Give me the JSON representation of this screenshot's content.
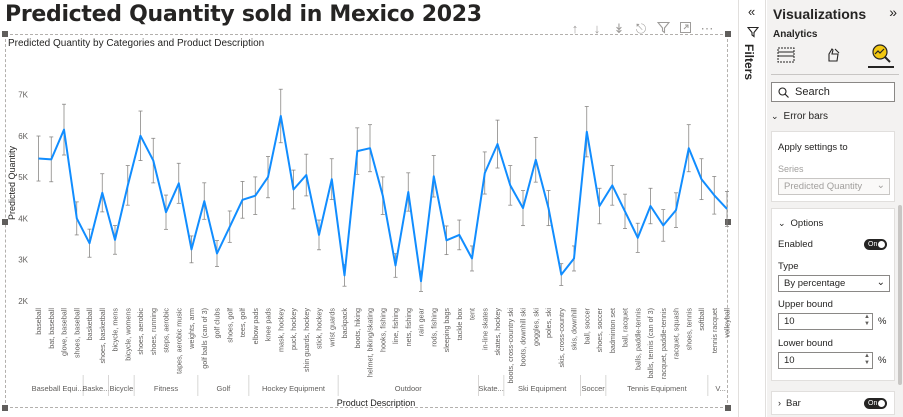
{
  "report": {
    "title": "Predicted Quantity sold in Mexico 2023"
  },
  "visual": {
    "title": "Predicted Quantity by Categories and Product Description",
    "header_icons": [
      "arrow-up-icon",
      "arrow-down-icon",
      "double-arrow-down-icon",
      "expand-hierarchy-icon",
      "filter-icon",
      "focus-mode-icon",
      "more-options-icon"
    ]
  },
  "chart_data": {
    "type": "line",
    "xlabel": "Product Description",
    "ylabel": "Predicted Quantity",
    "ylim": [
      2000,
      7400
    ],
    "yticks": [
      2000,
      3000,
      4000,
      5000,
      6000,
      7000
    ],
    "ytick_labels": [
      "2K",
      "3K",
      "4K",
      "5K",
      "6K",
      "7K"
    ],
    "error_bars": "percentage ±10%",
    "color": "#118DFF",
    "categories": [
      "baseball",
      "bat, baseball",
      "glove, baseball",
      "shoes, baseball",
      "basketball",
      "shoes, basketball",
      "bicycle, mens",
      "bicycle, womens",
      "shoes, aerobic",
      "shoes, running",
      "steps, aerobic",
      "tapes, aerobic music",
      "weights, arm",
      "golf balls (can of 3)",
      "golf clubs",
      "shoes, golf",
      "tees, golf",
      "elbow pads",
      "knee pads",
      "mask, hockey",
      "puck, hockey",
      "shin guards, hockey",
      "stick, hockey",
      "wrist guards",
      "backpack",
      "boots, hiking",
      "helmet, biking/skating",
      "hooks, fishing",
      "line, fishing",
      "nets, fishing",
      "rain gear",
      "rods, fishing",
      "sleeping bags",
      "tackle box",
      "tent",
      "in-line skates",
      "skates, hockey",
      "boots, cross-country ski",
      "boots, downhill ski",
      "goggles, ski",
      "poles, ski",
      "skis, cross-country",
      "skis, downhill",
      "ball, soccer",
      "shoes, soccer",
      "badminton set",
      "ball, racquet",
      "balls, paddle-tennis",
      "balls, tennis (can of 3)",
      "racquet, paddle-tennis",
      "racquet, squash",
      "shoes, tennis",
      "softball",
      "tennis racquet",
      "volleyball"
    ],
    "series": [
      {
        "name": "Predicted Quantity",
        "values": [
          5450,
          5430,
          6150,
          4000,
          3400,
          4620,
          3480,
          4800,
          6000,
          5400,
          4150,
          4850,
          3250,
          4420,
          3150,
          3800,
          4450,
          4550,
          5000,
          6480,
          4700,
          5050,
          3600,
          4950,
          2620,
          5630,
          5700,
          4550,
          2860,
          4640,
          2480,
          5020,
          3470,
          3600,
          3030,
          5100,
          5800,
          4800,
          4250,
          5420,
          4250,
          2640,
          3030,
          6100,
          4300,
          4800,
          4170,
          3530,
          4300,
          3830,
          4200,
          5700,
          4950,
          4560,
          4230
        ]
      }
    ],
    "groups": [
      {
        "label": "Baseball Equi...",
        "count": 4
      },
      {
        "label": "Baske...",
        "count": 2
      },
      {
        "label": "Bicycle",
        "count": 2
      },
      {
        "label": "Fitness",
        "count": 5
      },
      {
        "label": "Golf",
        "count": 4
      },
      {
        "label": "Hockey Equipment",
        "count": 7
      },
      {
        "label": "Outdoor",
        "count": 11
      },
      {
        "label": "Skate...",
        "count": 2
      },
      {
        "label": "Ski Equipment",
        "count": 6
      },
      {
        "label": "Soccer",
        "count": 2
      },
      {
        "label": "Tennis Equipment",
        "count": 8
      },
      {
        "label": "V...",
        "count": 2
      }
    ]
  },
  "filters": {
    "label": "Filters",
    "collapse_icon": "chevron-double-left-icon",
    "icon": "filter-icon"
  },
  "viz_pane": {
    "title": "Visualizations",
    "subtitle": "Analytics",
    "expand_icon": "chevron-double-right-icon",
    "tabs": [
      "build-visual-icon",
      "format-visual-icon",
      "analytics-icon"
    ],
    "search": {
      "placeholder": "Search",
      "icon": "search-icon"
    },
    "error_bars": {
      "heading": "Error bars",
      "apply_settings_to": "Apply settings to",
      "series_label": "Series",
      "series_value": "Predicted Quantity"
    },
    "options": {
      "heading": "Options",
      "enabled_label": "Enabled",
      "enabled_toggle": "On",
      "type_label": "Type",
      "type_value": "By percentage",
      "upper_bound_label": "Upper bound",
      "upper_bound_value": "10",
      "lower_bound_label": "Lower bound",
      "lower_bound_value": "10",
      "percent_sign": "%"
    },
    "bar": {
      "heading": "Bar",
      "toggle": "On"
    }
  }
}
